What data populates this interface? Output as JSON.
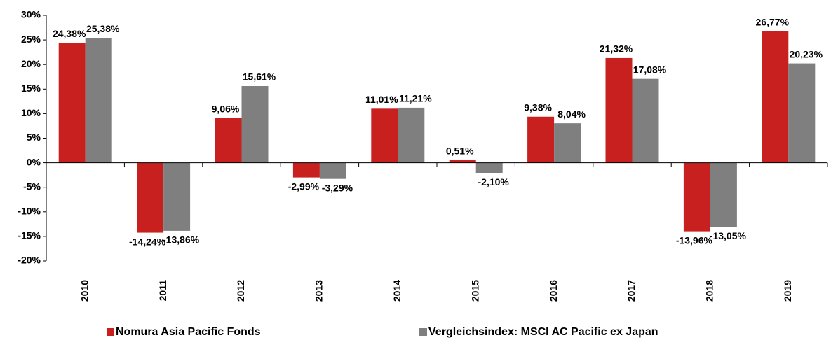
{
  "chart_data": {
    "type": "bar",
    "categories": [
      "2010",
      "2011",
      "2012",
      "2013",
      "2014",
      "2015",
      "2016",
      "2017",
      "2018",
      "2019"
    ],
    "series": [
      {
        "name": "Nomura Asia Pacific Fonds",
        "color": "#c8201e",
        "values": [
          24.38,
          -14.24,
          9.06,
          -2.99,
          11.01,
          0.51,
          9.38,
          21.32,
          -13.96,
          26.77
        ],
        "value_labels": [
          "24,38%",
          "-14,24%",
          "9,06%",
          "-2,99%",
          "11,01%",
          "0,51%",
          "9,38%",
          "21,32%",
          "-13,96%",
          "26,77%"
        ]
      },
      {
        "name": "Vergleichsindex: MSCI AC Pacific ex Japan",
        "color": "#7f7f7f",
        "values": [
          25.38,
          -13.86,
          15.61,
          -3.29,
          11.21,
          -2.1,
          8.04,
          17.08,
          -13.05,
          20.23
        ],
        "value_labels": [
          "25,38%",
          "-13,86%",
          "15,61%",
          "-3,29%",
          "11,21%",
          "-2,10%",
          "8,04%",
          "17,08%",
          "-13,05%",
          "20,23%"
        ]
      }
    ],
    "ylim": [
      -20,
      30
    ],
    "yticks": [
      {
        "value": -20,
        "label": "-20%"
      },
      {
        "value": -15,
        "label": "-15%"
      },
      {
        "value": -10,
        "label": "-10%"
      },
      {
        "value": -5,
        "label": "-5%"
      },
      {
        "value": 0,
        "label": "0%"
      },
      {
        "value": 5,
        "label": "5%"
      },
      {
        "value": 10,
        "label": "10%"
      },
      {
        "value": 15,
        "label": "15%"
      },
      {
        "value": 20,
        "label": "20%"
      },
      {
        "value": 25,
        "label": "25%"
      },
      {
        "value": 30,
        "label": "30%"
      }
    ],
    "grid": false
  }
}
